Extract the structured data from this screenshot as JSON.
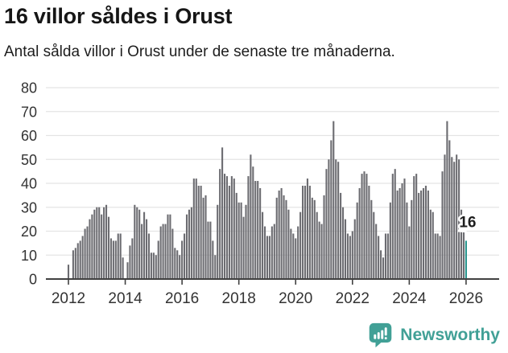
{
  "header": {
    "title": "16 villor såldes i Orust",
    "subtitle": "Antal sålda villor i Orust under de senaste tre månaderna."
  },
  "annotation": {
    "last_value_label": "16"
  },
  "footer": {
    "brand": "Newsworthy",
    "logo_icon": "bar-chart-speech-bubble-icon"
  },
  "colors": {
    "bar": "#6C6C71",
    "highlight_bar": "#27948C",
    "gridline": "#E4E4E4",
    "axis": "#414141",
    "tick_label": "#333333",
    "text": "#161616",
    "brand_teal": "#41A096",
    "annotation_text": "#1D1D1D",
    "annotation_halo": "#FFFFFF"
  },
  "chart_data": {
    "type": "bar",
    "title": "16 villor såldes i Orust",
    "subtitle": "Antal sålda villor i Orust under de senaste tre månaderna.",
    "xlabel": "",
    "ylabel": "",
    "ylim": [
      0,
      80
    ],
    "yticks": [
      0,
      10,
      20,
      30,
      40,
      50,
      60,
      70,
      80
    ],
    "xticks": [
      2012,
      2014,
      2016,
      2018,
      2020,
      2022,
      2024,
      2026
    ],
    "grid": true,
    "legend": "none",
    "frequency": "monthly",
    "x_start": "2012-01",
    "highlight_last": true,
    "highlight_label": "16",
    "series": [
      {
        "name": "Antal sålda villor under de senaste tre månaderna",
        "values_by_year": {
          "2012": [
            6,
            0,
            12,
            13,
            15,
            16,
            18,
            21,
            22,
            25,
            27,
            29
          ],
          "2013": [
            30,
            30,
            27,
            30,
            31,
            26,
            17,
            16,
            16,
            19,
            19,
            9
          ],
          "2014": [
            0,
            7,
            14,
            17,
            31,
            30,
            29,
            23,
            28,
            25,
            19,
            11
          ],
          "2015": [
            11,
            10,
            16,
            22,
            23,
            23,
            27,
            27,
            21,
            13,
            12,
            10
          ],
          "2016": [
            16,
            19,
            27,
            29,
            30,
            42,
            42,
            39,
            39,
            34,
            35,
            24
          ],
          "2017": [
            24,
            16,
            10,
            31,
            46,
            55,
            44,
            43,
            39,
            43,
            42,
            36
          ],
          "2018": [
            32,
            32,
            26,
            31,
            43,
            52,
            47,
            41,
            41,
            38,
            28,
            22
          ],
          "2019": [
            18,
            18,
            22,
            23,
            34,
            37,
            38,
            35,
            33,
            29,
            21,
            19
          ],
          "2020": [
            17,
            22,
            28,
            39,
            39,
            42,
            39,
            34,
            33,
            28,
            24,
            23
          ],
          "2021": [
            35,
            46,
            50,
            58,
            66,
            50,
            49,
            36,
            30,
            25,
            19,
            18
          ],
          "2022": [
            20,
            25,
            32,
            38,
            44,
            45,
            44,
            39,
            33,
            28,
            23,
            18
          ],
          "2023": [
            12,
            9,
            19,
            19,
            32,
            44,
            46,
            37,
            38,
            40,
            42,
            32
          ],
          "2024": [
            22,
            33,
            43,
            44,
            36,
            37,
            38,
            39,
            37,
            29,
            28,
            19
          ],
          "2025": [
            19,
            18,
            45,
            52,
            66,
            58,
            51,
            49,
            52,
            50,
            29,
            24
          ],
          "2026": [
            16
          ]
        }
      }
    ]
  }
}
